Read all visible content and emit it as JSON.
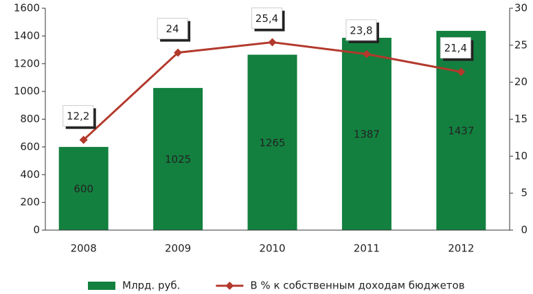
{
  "chart_data": {
    "type": "bar",
    "categories": [
      "2008",
      "2009",
      "2010",
      "2011",
      "2012"
    ],
    "series": [
      {
        "name": "Млрд. руб.",
        "type": "bar",
        "color": "#13803f",
        "values": [
          600,
          1025,
          1265,
          1387,
          1437
        ]
      },
      {
        "name": "В % к собственным доходам бюджетов",
        "type": "line",
        "axis": "y2",
        "color": "#b3392c",
        "values": [
          12.2,
          24,
          25.4,
          23.8,
          21.4
        ],
        "value_labels": [
          "12,2",
          "24",
          "25,4",
          "23,8",
          "21,4"
        ]
      }
    ],
    "ylim": [
      0,
      1600
    ],
    "yticks": [
      0,
      200,
      400,
      600,
      800,
      1000,
      1200,
      1400,
      1600
    ],
    "y2lim": [
      0,
      30
    ],
    "y2ticks": [
      0,
      5,
      10,
      15,
      20,
      25,
      30
    ],
    "grid": false,
    "legend": "bottom"
  }
}
